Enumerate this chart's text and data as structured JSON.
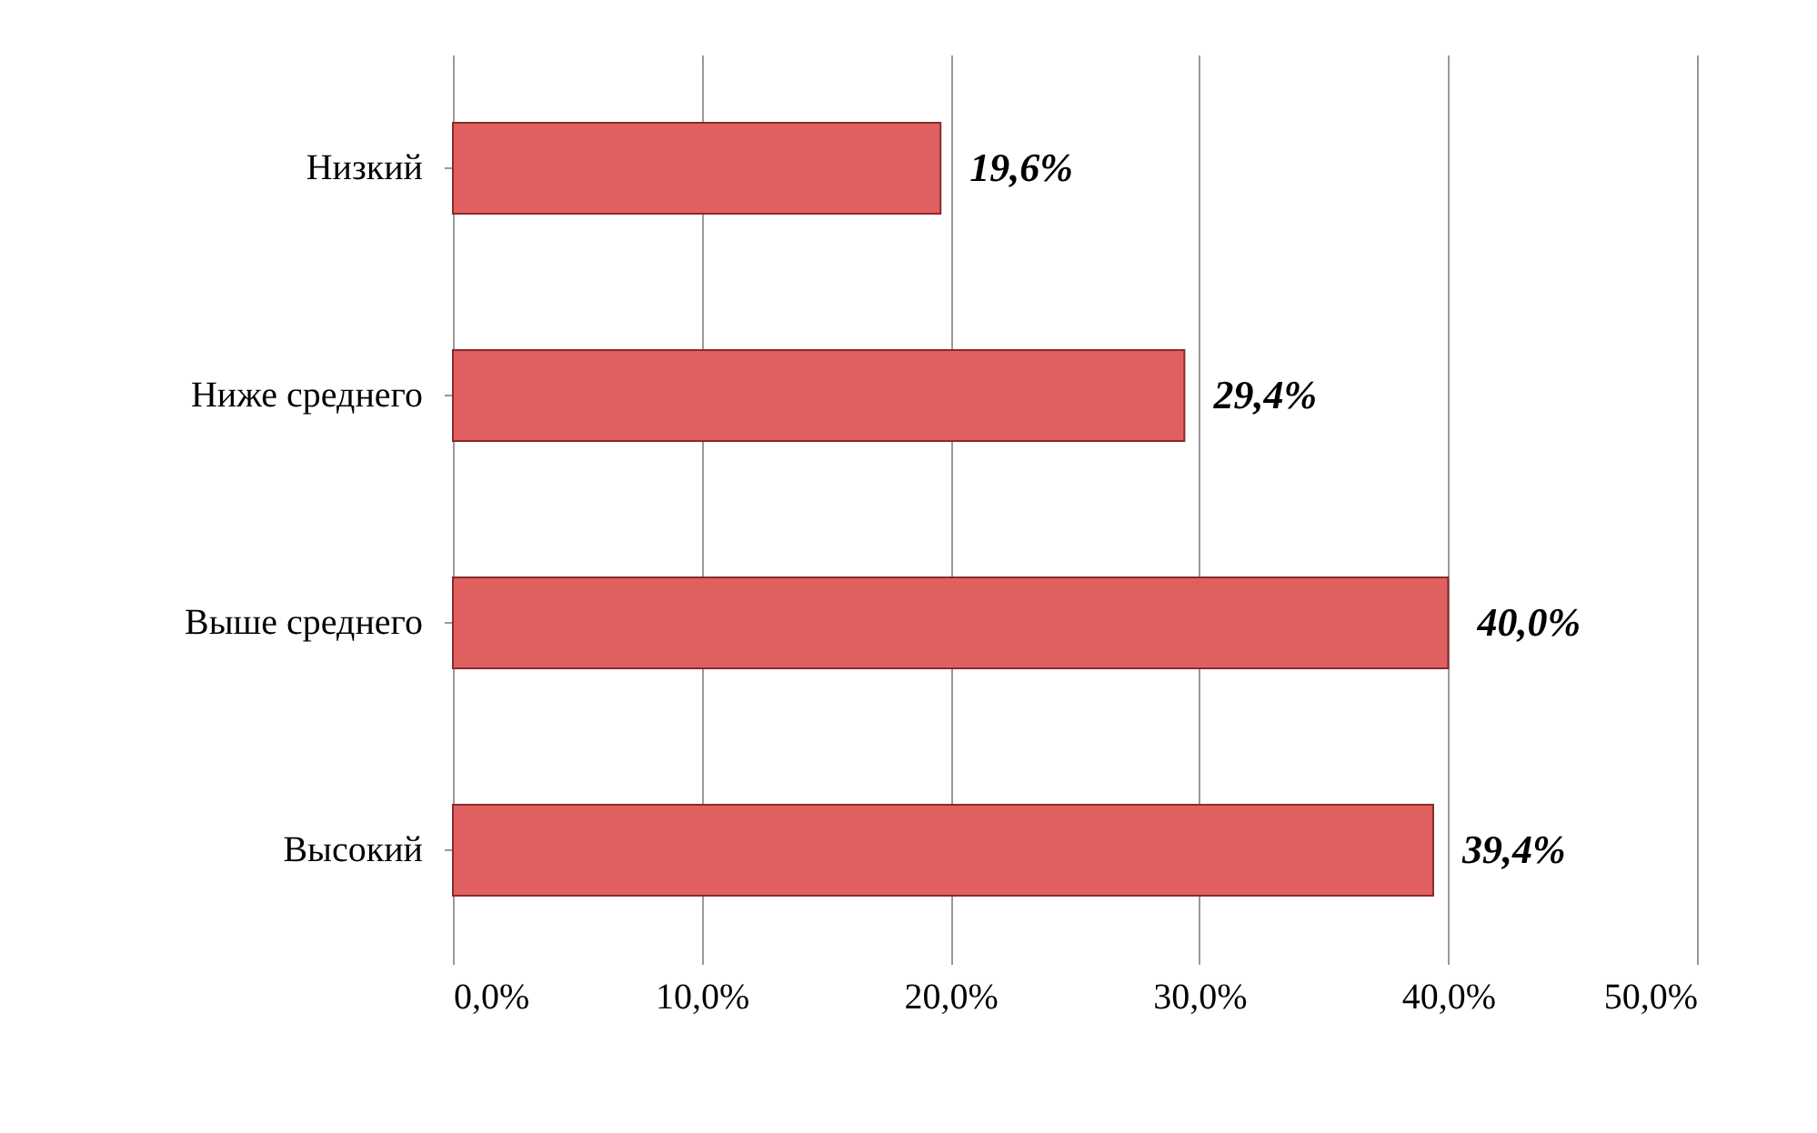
{
  "chart_data": {
    "type": "bar",
    "orientation": "horizontal",
    "categories": [
      "Низкий",
      "Ниже среднего",
      "Выше среднего",
      "Высокий"
    ],
    "values": [
      19.6,
      29.4,
      40.0,
      39.4
    ],
    "value_labels": [
      "19,6%",
      "29,4%",
      "40,0%",
      "39,4%"
    ],
    "color": "#e06060",
    "xlim": [
      0,
      50
    ],
    "xticks": [
      {
        "value": 0,
        "label": "0,0%"
      },
      {
        "value": 10,
        "label": "10,0%"
      },
      {
        "value": 20,
        "label": "20,0%"
      },
      {
        "value": 30,
        "label": "30,0%"
      },
      {
        "value": 40,
        "label": "40,0%"
      },
      {
        "value": 50,
        "label": "50,0%"
      }
    ],
    "grid": "x"
  }
}
